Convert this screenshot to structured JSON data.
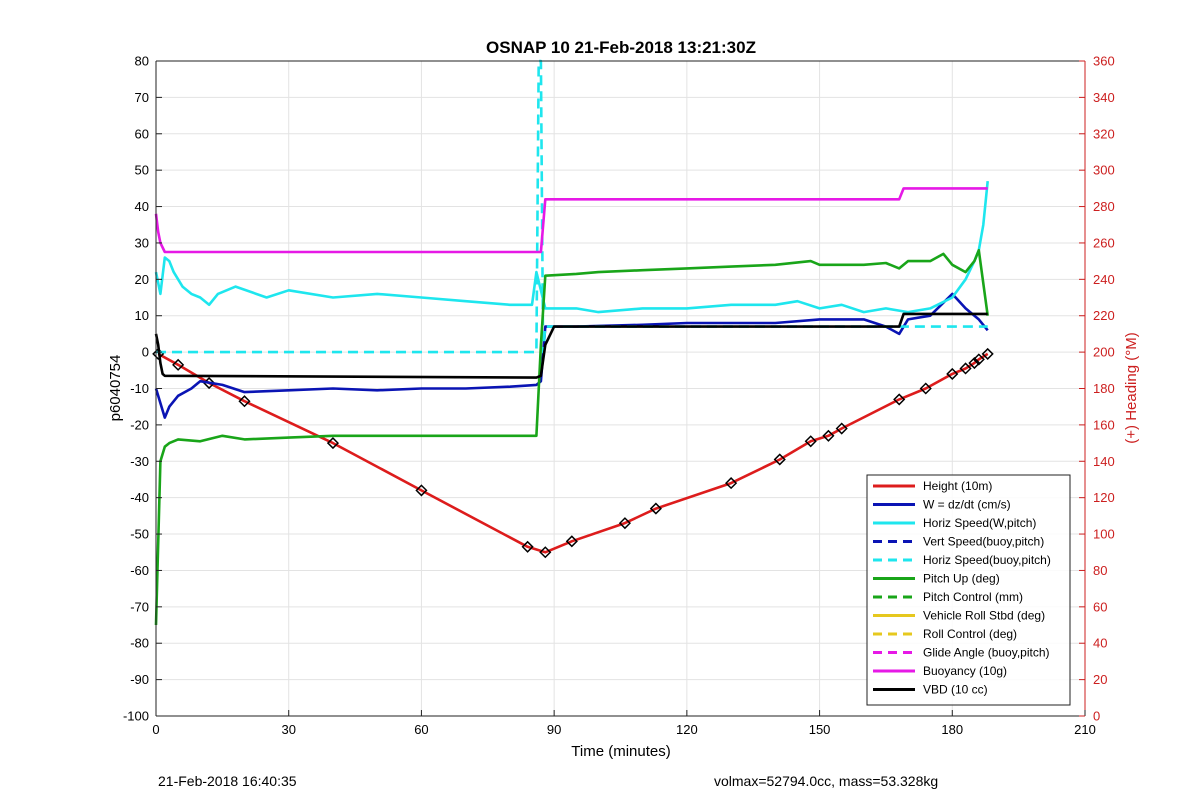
{
  "footer": {
    "left": "21-Feb-2018 16:40:35",
    "right": "volmax=52794.0cc, mass=53.328kg"
  },
  "chart_data": {
    "type": "line",
    "title": "OSNAP 10 21-Feb-2018 13:21:30Z",
    "xlabel": "Time (minutes)",
    "ylabel": "p6040754",
    "y2label": "(+) Heading (°M)",
    "xlim": [
      0,
      210
    ],
    "ylim": [
      -100,
      80
    ],
    "y2lim": [
      0,
      360
    ],
    "xticks": [
      0,
      30,
      60,
      90,
      120,
      150,
      180,
      210
    ],
    "yticks": [
      -100,
      -90,
      -80,
      -70,
      -60,
      -50,
      -40,
      -30,
      -20,
      -10,
      0,
      10,
      20,
      30,
      40,
      50,
      60,
      70,
      80
    ],
    "y2ticks": [
      0,
      20,
      40,
      60,
      80,
      100,
      120,
      140,
      160,
      180,
      200,
      220,
      240,
      260,
      280,
      300,
      320,
      340,
      360
    ],
    "grid": true,
    "legend_position": "bottom-right",
    "colors": {
      "red": "#dd1c1c",
      "blue": "#0a14b4",
      "cyan": "#1ee6ee",
      "green": "#19a519",
      "yellow": "#e6c81e",
      "magenta": "#e619e6",
      "black": "#000000"
    },
    "series": [
      {
        "name": "Height (10m)",
        "color": "#dd1c1c",
        "style": "solid",
        "markers": "triangle-diamond",
        "x": [
          0.5,
          5,
          12,
          20,
          40,
          60,
          84,
          88,
          94,
          106,
          113,
          130,
          141,
          148,
          152,
          155,
          168,
          174,
          180,
          183,
          185,
          186,
          188
        ],
        "y": [
          -0.5,
          -3.5,
          -8.5,
          -13.5,
          -25,
          -38,
          -53.5,
          -55,
          -52,
          -47,
          -43,
          -36,
          -29.5,
          -24.5,
          -23,
          -21,
          -13,
          -10,
          -6,
          -4.5,
          -3,
          -2,
          -0.5
        ]
      },
      {
        "name": "W = dz/dt (cm/s)",
        "color": "#0a14b4",
        "style": "solid",
        "x": [
          0,
          1,
          2,
          3,
          5,
          8,
          10,
          15,
          20,
          30,
          40,
          50,
          60,
          70,
          80,
          86,
          87,
          88,
          95,
          110,
          120,
          130,
          140,
          150,
          160,
          165,
          168,
          170,
          175,
          180,
          183,
          186,
          188
        ],
        "y": [
          -10,
          -14,
          -18,
          -15,
          -12,
          -10,
          -8,
          -9,
          -11,
          -10.5,
          -10,
          -10.5,
          -10,
          -10,
          -9.5,
          -9,
          -8,
          7,
          7,
          7.5,
          8,
          8,
          8,
          9,
          9,
          7,
          5,
          9,
          10,
          16,
          12,
          9,
          6
        ]
      },
      {
        "name": "Horiz Speed(W,pitch)",
        "color": "#1ee6ee",
        "style": "solid",
        "x": [
          0,
          1,
          2,
          3,
          4,
          6,
          8,
          10,
          12,
          14,
          18,
          25,
          30,
          40,
          50,
          60,
          70,
          80,
          85,
          86,
          87,
          88,
          90,
          95,
          100,
          110,
          120,
          130,
          140,
          145,
          150,
          155,
          160,
          165,
          170,
          175,
          180,
          183,
          185,
          186,
          187,
          188
        ],
        "y": [
          22,
          16,
          26,
          25,
          22,
          18,
          16,
          15,
          13,
          16,
          18,
          15,
          17,
          15,
          16,
          15,
          14,
          13,
          13,
          22,
          17,
          12,
          12,
          12,
          11,
          12,
          12,
          13,
          13,
          14,
          12,
          13,
          11,
          12,
          11,
          12,
          15,
          20,
          25,
          28,
          35,
          47
        ]
      },
      {
        "name": "Vert Speed(buoy,pitch)",
        "color": "#0a14b4",
        "style": "dashed",
        "x": [],
        "y": []
      },
      {
        "name": "Horiz Speed(buoy,pitch)",
        "color": "#1ee6ee",
        "style": "dashed",
        "x": [
          0,
          2,
          85,
          86,
          86.5,
          87,
          87.5,
          88,
          95,
          140,
          160,
          175,
          180,
          184,
          186,
          188
        ],
        "y": [
          0,
          0,
          0,
          0,
          80,
          80,
          0,
          7,
          7,
          7,
          7,
          7,
          7,
          7,
          7,
          7
        ]
      },
      {
        "name": "Pitch Up (deg)",
        "color": "#19a519",
        "style": "solid",
        "x": [
          0,
          1,
          2,
          3,
          5,
          10,
          15,
          20,
          30,
          40,
          50,
          60,
          70,
          80,
          86,
          87,
          88,
          95,
          100,
          110,
          120,
          130,
          140,
          148,
          150,
          160,
          165,
          168,
          170,
          175,
          178,
          180,
          183,
          185,
          186,
          188
        ],
        "y": [
          -75,
          -30,
          -26,
          -25,
          -24,
          -24.5,
          -23,
          -24,
          -23.5,
          -23,
          -23,
          -23,
          -23,
          -23,
          -23,
          2,
          21,
          21.5,
          22,
          22.5,
          23,
          23.5,
          24,
          25,
          24,
          24,
          24.5,
          23,
          25,
          25,
          27,
          24,
          22,
          25,
          28,
          10
        ]
      },
      {
        "name": "Pitch Control (mm)",
        "color": "#19a519",
        "style": "dashed",
        "x": [],
        "y": []
      },
      {
        "name": "Vehicle Roll Stbd (deg)",
        "color": "#e6c81e",
        "style": "solid",
        "x": [],
        "y": []
      },
      {
        "name": "Roll Control (deg)",
        "color": "#e6c81e",
        "style": "dashed",
        "x": [],
        "y": []
      },
      {
        "name": "Glide Angle (buoy,pitch)",
        "color": "#e619e6",
        "style": "dashed",
        "x": [],
        "y": []
      },
      {
        "name": "Buoyancy (10g)",
        "color": "#e619e6",
        "style": "solid",
        "x": [
          0,
          0.5,
          1,
          2,
          3,
          87,
          88,
          90,
          168,
          169,
          170,
          188
        ],
        "y": [
          38,
          33,
          30,
          27.5,
          27.5,
          27.5,
          42,
          42,
          42,
          45,
          45,
          45
        ]
      },
      {
        "name": "VBD (10 cc)",
        "color": "#000000",
        "style": "solid",
        "x": [
          0,
          0.5,
          1,
          1.5,
          2,
          86,
          87,
          88,
          90,
          100,
          168,
          169,
          170,
          188
        ],
        "y": [
          5,
          2,
          -3,
          -6,
          -6.5,
          -7,
          -6.5,
          2,
          7,
          7,
          7,
          10.5,
          10.5,
          10.5
        ]
      }
    ]
  }
}
